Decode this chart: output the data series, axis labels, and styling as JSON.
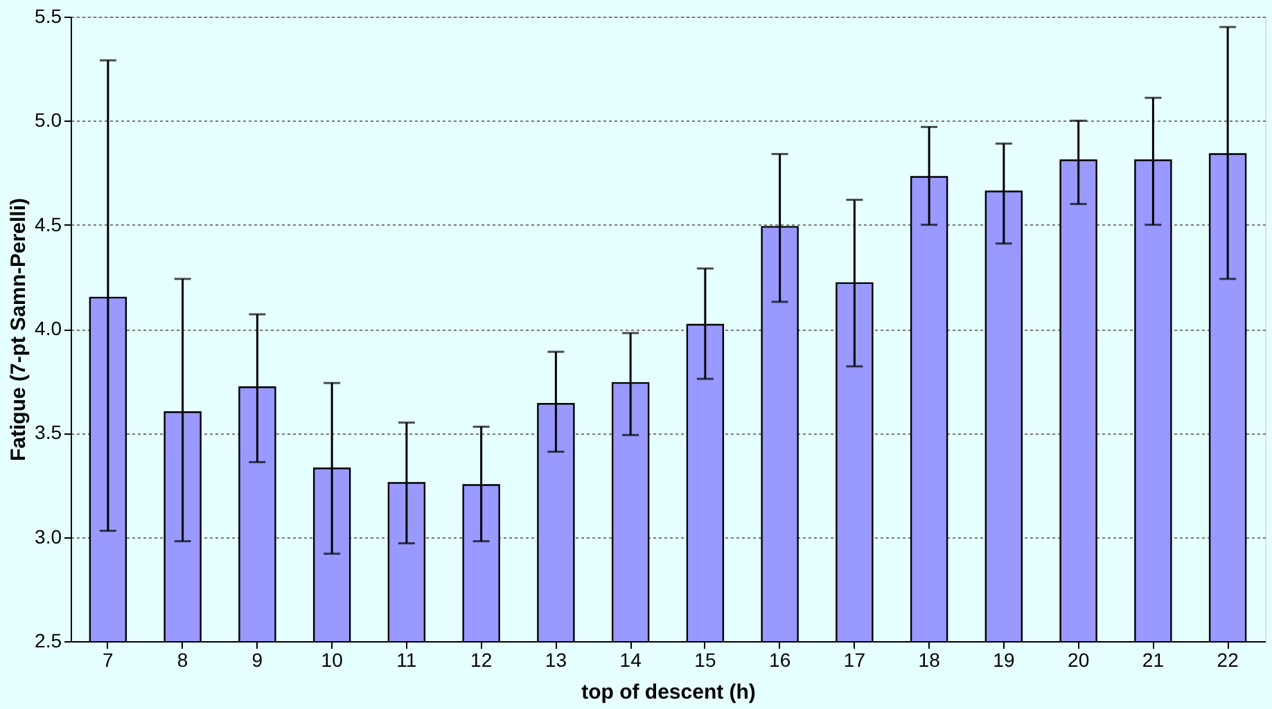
{
  "chart_data": {
    "type": "bar",
    "xlabel": "top of descent (h)",
    "ylabel": "Fatigue (7-pt Samn-Perelli)",
    "categories": [
      "7",
      "8",
      "9",
      "10",
      "11",
      "12",
      "13",
      "14",
      "15",
      "16",
      "17",
      "18",
      "19",
      "20",
      "21",
      "22"
    ],
    "values": [
      4.15,
      3.6,
      3.72,
      3.33,
      3.26,
      3.25,
      3.64,
      3.74,
      4.02,
      4.49,
      4.22,
      4.73,
      4.66,
      4.81,
      4.81,
      4.84
    ],
    "errors": [
      [
        3.03,
        5.29
      ],
      [
        2.98,
        4.24
      ],
      [
        3.36,
        4.07
      ],
      [
        2.92,
        3.74
      ],
      [
        2.97,
        3.55
      ],
      [
        2.98,
        3.53
      ],
      [
        3.41,
        3.89
      ],
      [
        3.49,
        3.98
      ],
      [
        3.76,
        4.29
      ],
      [
        4.13,
        4.84
      ],
      [
        3.82,
        4.62
      ],
      [
        4.5,
        4.97
      ],
      [
        4.41,
        4.89
      ],
      [
        4.6,
        5.0
      ],
      [
        4.5,
        5.11
      ],
      [
        4.24,
        5.45
      ]
    ],
    "color": "#9999ff",
    "ylim": [
      2.5,
      5.5
    ],
    "yticks": [
      {
        "value": 2.5,
        "label": "2.5"
      },
      {
        "value": 3.0,
        "label": "3.0"
      },
      {
        "value": 3.5,
        "label": "3.5"
      },
      {
        "value": 4.0,
        "label": "4.0"
      },
      {
        "value": 4.5,
        "label": "4.5"
      },
      {
        "value": 5.0,
        "label": "5.0"
      },
      {
        "value": 5.5,
        "label": "5.5"
      }
    ],
    "grid": "y"
  }
}
